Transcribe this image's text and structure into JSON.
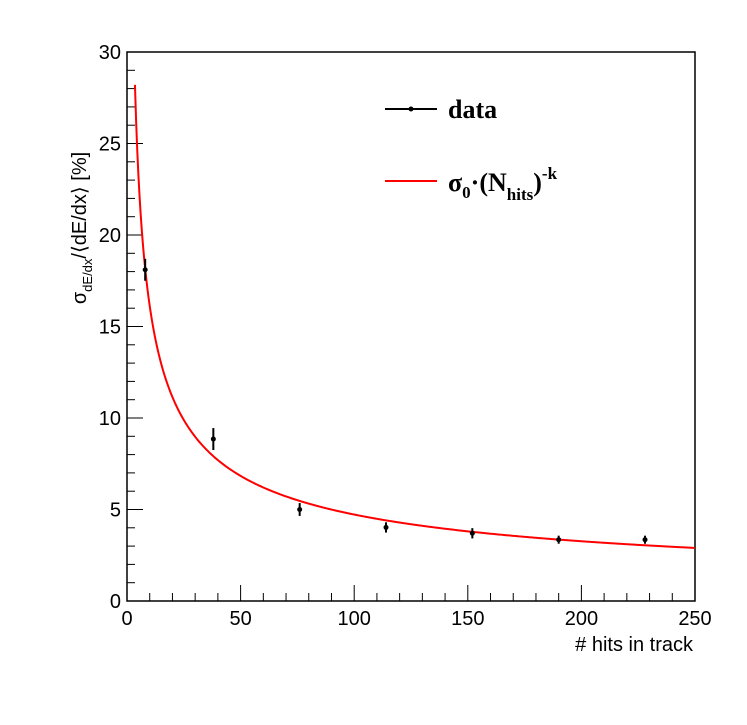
{
  "chart_data": {
    "type": "scatter",
    "xlabel": "# hits in track",
    "ylabel_main": "σ",
    "ylabel_sub": "dE/dx",
    "ylabel_rest": "/⟨dE/dx⟩ [%]",
    "xlim": [
      0,
      250
    ],
    "ylim": [
      0,
      30
    ],
    "x_ticks": [
      0,
      50,
      100,
      150,
      200,
      250
    ],
    "y_ticks": [
      0,
      5,
      10,
      15,
      20,
      25,
      30
    ],
    "grid": false,
    "legend_position": "top-right",
    "series": [
      {
        "name": "data",
        "type": "scatter",
        "color": "#000000",
        "x": [
          8,
          38,
          76,
          114,
          152,
          190,
          228
        ],
        "y": [
          18.1,
          8.85,
          5.0,
          4.02,
          3.7,
          3.35,
          3.35
        ],
        "yerr": [
          0.6,
          0.6,
          0.35,
          0.28,
          0.28,
          0.22,
          0.22
        ]
      },
      {
        "name": "σ0·(Nhits)-k",
        "type": "line",
        "color": "#ff0000",
        "sigma0": 55.0,
        "k": 0.533
      }
    ],
    "legend": {
      "data_label": "data",
      "fit_sigma": "σ",
      "fit_sigma_sub": "0",
      "fit_mid": "·(N",
      "fit_n_sub": "hits",
      "fit_close": ")",
      "fit_exp": "-k"
    }
  }
}
